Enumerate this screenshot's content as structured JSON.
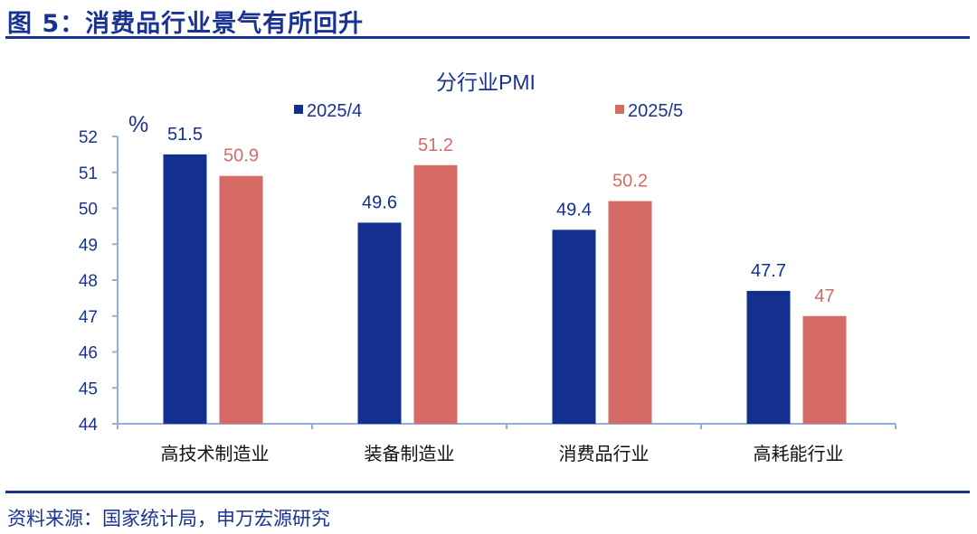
{
  "figure_title": "图 5：消费品行业景气有所回升",
  "source": "资料来源：国家统计局，申万宏源研究",
  "colors": {
    "series_1": "#13308F",
    "series_2": "#D66A64",
    "axis": "#8FB0DC",
    "text": "#1A3391"
  },
  "chart_data": {
    "type": "bar",
    "title": "分行业PMI",
    "ylabel": "%",
    "xlabel": "",
    "categories": [
      "高技术制造业",
      "装备制造业",
      "消费品行业",
      "高耗能行业"
    ],
    "series": [
      {
        "name": "2025/4",
        "values": [
          51.5,
          49.6,
          49.4,
          47.7
        ],
        "labels": [
          "51.5",
          "49.6",
          "49.4",
          "47.7"
        ]
      },
      {
        "name": "2025/5",
        "values": [
          50.9,
          51.2,
          50.2,
          47.0
        ],
        "labels": [
          "50.9",
          "51.2",
          "50.2",
          "47"
        ]
      }
    ],
    "ylim": [
      44,
      52
    ],
    "yticks": [
      "44",
      "45",
      "46",
      "47",
      "48",
      "49",
      "50",
      "51",
      "52"
    ],
    "grid": false,
    "legend": "top"
  }
}
